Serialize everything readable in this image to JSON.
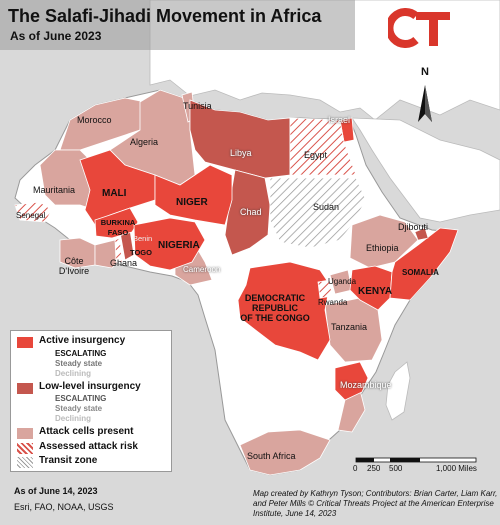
{
  "title": "The Salafi-Jihadi Movement in Africa",
  "subtitle": "As of June 2023",
  "logo_text": "CT",
  "north_label": "N",
  "colors": {
    "active": "#e8473b",
    "low_level": "#c4574e",
    "attack_cells": "#d9a59e",
    "assessed_risk": "#d9534b",
    "transit": "#9a9a9a",
    "land": "#ffffff",
    "sea": "#d9d9d9"
  },
  "countries": {
    "tunisia": "Tunisia",
    "morocco": "Morocco",
    "algeria": "Algeria",
    "libya": "Libya",
    "egypt": "Egypt",
    "mauritania": "Mauritania",
    "mali": "MALI",
    "niger": "NIGER",
    "chad": "Chad",
    "sudan": "Sudan",
    "senegal": "Senegal",
    "burkina": "BURKINA\nFASO",
    "benin": "Benin",
    "togo": "TOGO",
    "nigeria": "NIGERIA",
    "cameroon": "Cameroon",
    "djibouti": "Djibouti",
    "ethiopia": "Ethiopia",
    "somalia": "SOMALIA",
    "cote": "Côte\nD'Ivoire",
    "ghana": "Ghana",
    "uganda": "Uganda",
    "rwanda": "Rwanda",
    "kenya": "KENYA",
    "drc": "DEMOCRATIC\nREPUBLIC\nOF THE CONGO",
    "tanzania": "Tanzania",
    "mozambique": "Mozambique",
    "south_africa": "South Africa",
    "israel": "Israel"
  },
  "legend": {
    "active": "Active insurgency",
    "active_trend": [
      "ESCALATING",
      "Steady state",
      "Declining"
    ],
    "low": "Low-level insurgency",
    "low_trend": [
      "ESCALATING",
      "Steady state",
      "Declining"
    ],
    "attack": "Attack cells present",
    "assessed": "Assessed attack risk",
    "transit": "Transit zone"
  },
  "scale": {
    "ticks": [
      "0",
      "250",
      "500",
      "1,000 Miles"
    ]
  },
  "date_note": "As of June 14, 2023",
  "sources": "Esri, FAO, NOAA, USGS",
  "credits": "Map created by Kathryn Tyson; Contributors: Brian Carter, Liam Karr, and Peter Mills © Critical Threats Project at the American Enterprise Institute, June 14, 2023"
}
